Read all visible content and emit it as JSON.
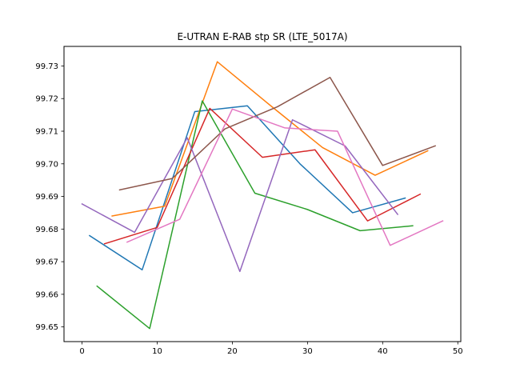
{
  "chart_data": {
    "type": "line",
    "title": "E-UTRAN E-RAB stp SR (LTE_5017A)",
    "xlabel": "",
    "ylabel": "",
    "xlim": [
      -2.4,
      50.4
    ],
    "ylim": [
      99.6455,
      99.736
    ],
    "xticks": [
      0,
      10,
      20,
      30,
      40,
      50
    ],
    "yticks": [
      99.65,
      99.66,
      99.67,
      99.68,
      99.69,
      99.7,
      99.71,
      99.72,
      99.73
    ],
    "ytick_labels": [
      "99.65",
      "99.66",
      "99.67",
      "99.68",
      "99.69",
      "99.70",
      "99.71",
      "99.72",
      "99.73"
    ],
    "grid": false,
    "legend": "none",
    "series": [
      {
        "color": "#1f77b4",
        "x": [
          1,
          8,
          15,
          22,
          29,
          36,
          43
        ],
        "y": [
          99.678,
          99.6675,
          99.716,
          99.7178,
          99.7,
          99.685,
          99.6895
        ]
      },
      {
        "color": "#ff7f0e",
        "x": [
          4,
          11,
          18,
          25,
          32,
          39,
          46
        ],
        "y": [
          99.684,
          99.687,
          99.7313,
          99.718,
          99.705,
          99.6965,
          99.704
        ]
      },
      {
        "color": "#2ca02c",
        "x": [
          2,
          9,
          16,
          23,
          30,
          37,
          44
        ],
        "y": [
          99.6625,
          99.6495,
          99.7193,
          99.691,
          99.686,
          99.6795,
          99.681
        ]
      },
      {
        "color": "#d62728",
        "x": [
          3,
          10,
          17,
          24,
          31,
          38,
          45
        ],
        "y": [
          99.6755,
          99.6805,
          99.717,
          99.702,
          99.7043,
          99.6825,
          99.6907
        ]
      },
      {
        "color": "#9467bd",
        "x": [
          0,
          7,
          14,
          21,
          28,
          35,
          42
        ],
        "y": [
          99.6877,
          99.679,
          99.708,
          99.667,
          99.7135,
          99.7055,
          99.6845
        ]
      },
      {
        "color": "#8c564b",
        "x": [
          5,
          12,
          19,
          26,
          33,
          40,
          47
        ],
        "y": [
          99.692,
          99.6955,
          99.7107,
          99.7175,
          99.7265,
          99.6995,
          99.7055
        ]
      },
      {
        "color": "#e377c2",
        "x": [
          6,
          13,
          20,
          27,
          34,
          41,
          48
        ],
        "y": [
          99.676,
          99.683,
          99.7168,
          99.711,
          99.71,
          99.675,
          99.6825
        ]
      }
    ]
  }
}
